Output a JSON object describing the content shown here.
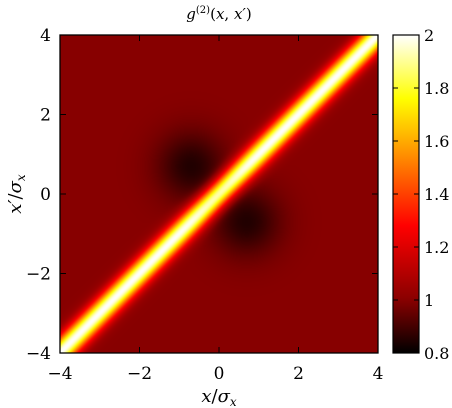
{
  "chart_data": {
    "type": "heatmap",
    "title": "g^(2)(x, x')",
    "xlabel": "x/σx",
    "ylabel": "x'/σx",
    "xlim": [
      -4,
      4
    ],
    "ylim": [
      -4,
      4
    ],
    "x_ticks": [
      -4,
      -2,
      0,
      2,
      4
    ],
    "y_ticks": [
      -4,
      -2,
      0,
      2,
      4
    ],
    "x_tick_labels": [
      "−4",
      "−2",
      "0",
      "2",
      "4"
    ],
    "y_tick_labels": [
      "−4",
      "−2",
      "0",
      "2",
      "4"
    ],
    "colorbar": {
      "range": [
        0.8,
        2
      ],
      "ticks": [
        0.8,
        1,
        1.2,
        1.4,
        1.6,
        1.8,
        2
      ],
      "tick_labels": [
        "0.8",
        "1",
        "1.2",
        "1.4",
        "1.6",
        "1.8",
        "2"
      ],
      "colormap": "hot",
      "colors": [
        "#000000",
        "#8a0000",
        "#ff0000",
        "#ff8000",
        "#ffff00",
        "#ffffff"
      ]
    },
    "features": [
      {
        "kind": "ridge",
        "along": "x = x'",
        "value": 2.0
      },
      {
        "kind": "minimum",
        "x": -0.7,
        "y": 0.7,
        "value": 0.85
      },
      {
        "kind": "minimum",
        "x": 0.7,
        "y": -0.7,
        "value": 0.85
      },
      {
        "kind": "background",
        "value": 1.0
      }
    ],
    "grid": false
  }
}
